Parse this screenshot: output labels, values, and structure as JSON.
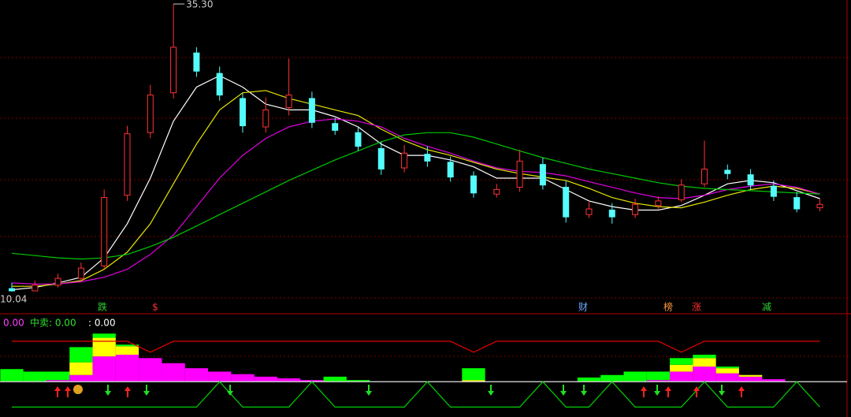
{
  "chart_data": [
    {
      "type": "candlestick",
      "categories": [
        null,
        null,
        null,
        null,
        null,
        null,
        null,
        null,
        null,
        null,
        null,
        null,
        null,
        null,
        null,
        null,
        null,
        null,
        null,
        null,
        null,
        null,
        null,
        null,
        null,
        null,
        null,
        null,
        null,
        null,
        null,
        null,
        null,
        null,
        null,
        null
      ],
      "open": [
        10.3,
        10.1,
        10.6,
        11.2,
        12.3,
        18.5,
        24,
        27.5,
        31,
        29.2,
        27,
        24.5,
        26.2,
        27,
        24.8,
        24,
        22.6,
        20.9,
        22.1,
        21.4,
        20.2,
        18.6,
        19.2,
        21.2,
        19.2,
        16.8,
        17.2,
        16.8,
        17.6,
        18.1,
        19.5,
        20.7,
        20.3,
        19.3,
        18.3,
        17.4
      ],
      "high": [
        10.8,
        11.0,
        11.6,
        12.6,
        19.0,
        24.6,
        28.2,
        35.3,
        31.5,
        29.8,
        27.5,
        27.1,
        30.5,
        27.6,
        25.3,
        24.5,
        23.2,
        22.9,
        22.8,
        21.9,
        20.6,
        19.5,
        22.5,
        21.8,
        19.8,
        17.9,
        17.8,
        18.2,
        18.4,
        19.9,
        23.3,
        21.2,
        20.8,
        19.8,
        18.8,
        18.2
      ],
      "low": [
        10.04,
        10.1,
        10.4,
        11.0,
        12.0,
        18.0,
        23.5,
        27.0,
        28.9,
        26.8,
        24.0,
        24.0,
        25.5,
        24.4,
        23.8,
        22.4,
        20.3,
        20.5,
        21.0,
        19.7,
        18.3,
        18.3,
        18.8,
        19.0,
        16.1,
        16.5,
        16.0,
        16.5,
        17.3,
        17.9,
        19.2,
        19.9,
        19.0,
        18.0,
        17.0,
        17.1
      ],
      "close": [
        10.1,
        10.6,
        11.2,
        12.1,
        18.3,
        23.9,
        27.3,
        31.5,
        29.4,
        27.3,
        24.6,
        26,
        27.3,
        24.9,
        24.2,
        22.8,
        20.8,
        22.2,
        21.5,
        20.1,
        18.7,
        19,
        21.5,
        19.4,
        16.6,
        17.3,
        16.6,
        17.7,
        18,
        19.4,
        20.8,
        20.4,
        19.4,
        18.4,
        17.3,
        17.7
      ],
      "up_color": "#ff3232",
      "down_color": "#54fcfc",
      "series": [
        {
          "color": "#ffffff",
          "values": [
            10.2,
            10.4,
            10.8,
            11.3,
            13,
            16,
            20,
            25,
            28,
            29,
            28,
            26.5,
            26,
            26,
            25.4,
            24.5,
            23,
            22,
            22,
            21.6,
            21,
            20,
            20,
            20,
            19,
            18,
            17.5,
            17.2,
            17.2,
            17.6,
            18.5,
            19.5,
            19.8,
            19.6,
            18.9,
            18.2
          ]
        },
        {
          "color": "#e6e600",
          "values": [
            10.5,
            10.5,
            10.7,
            11,
            12,
            13.5,
            16,
            19.5,
            23,
            26,
            27.5,
            27.7,
            27,
            26.5,
            26,
            25.5,
            24.3,
            23.3,
            22.5,
            22,
            21.4,
            20.8,
            20.4,
            20.1,
            19.8,
            19.1,
            18.3,
            17.8,
            17.5,
            17.4,
            17.9,
            18.5,
            19,
            19.3,
            19.1,
            18.6
          ]
        },
        {
          "color": "#e100e1",
          "values": [
            10.8,
            10.7,
            10.7,
            10.9,
            11.3,
            12,
            13.3,
            15,
            17.5,
            20,
            22,
            23.5,
            24.5,
            25,
            25.2,
            25,
            24.5,
            23.5,
            22.8,
            22.2,
            21.5,
            20.9,
            20.6,
            20.5,
            20.2,
            19.7,
            19.2,
            18.7,
            18.3,
            18.2,
            18.5,
            19,
            19.3,
            19.5,
            19.2,
            18.6
          ]
        },
        {
          "color": "#00c800",
          "values": [
            13.4,
            13.2,
            13,
            12.9,
            13,
            13.3,
            14,
            14.8,
            15.8,
            16.8,
            17.8,
            18.8,
            19.8,
            20.7,
            21.6,
            22.4,
            23.2,
            23.8,
            24,
            24,
            23.6,
            23,
            22.4,
            21.8,
            21.3,
            20.8,
            20.4,
            20,
            19.6,
            19.3,
            19.1,
            19,
            18.9,
            18.8,
            18.7,
            18.6
          ]
        }
      ],
      "ylim": [
        8.3,
        35.65
      ],
      "max_label": "35.30",
      "min_label": "10.04",
      "markers": [
        {
          "text": "跌",
          "color": "#30d030"
        },
        {
          "text": "$",
          "color": "#ff3030"
        },
        {
          "text": "财",
          "color": "#6fa8ff"
        },
        {
          "text": "榜",
          "color": "#ff9640"
        },
        {
          "text": "涨",
          "color": "#ff3030"
        },
        {
          "text": "减",
          "color": "#30d030"
        }
      ]
    },
    {
      "type": "bar",
      "stacked": true,
      "labels": [
        {
          "text": "0.00",
          "color": "#ff40ff"
        },
        {
          "text": "中卖: 0.00",
          "color": "#30e030"
        },
        {
          "text": ": 0.00",
          "color": "#ffffff"
        }
      ],
      "categories": [
        null,
        null,
        null,
        null,
        null,
        null,
        null,
        null,
        null,
        null,
        null,
        null,
        null,
        null,
        null,
        null,
        null,
        null,
        null,
        null,
        null,
        null,
        null,
        null,
        null,
        null,
        null,
        null,
        null,
        null,
        null,
        null,
        null,
        null,
        null,
        null
      ],
      "series": [
        {
          "color": "#ff00ff",
          "values": [
            0,
            0,
            2,
            8,
            30,
            32,
            28,
            22,
            16,
            12,
            9,
            6,
            4,
            2,
            0,
            0,
            0,
            0,
            0,
            0,
            0,
            0,
            0,
            0,
            0,
            0,
            0,
            0,
            2,
            12,
            18,
            10,
            6,
            3,
            0,
            0
          ]
        },
        {
          "color": "#ffff00",
          "values": [
            0,
            0,
            0,
            15,
            22,
            10,
            0,
            0,
            0,
            0,
            0,
            0,
            0,
            0,
            0,
            0,
            0,
            0,
            0,
            0,
            2,
            0,
            0,
            0,
            0,
            0,
            0,
            0,
            0,
            8,
            10,
            6,
            2,
            0,
            0,
            0
          ]
        },
        {
          "color": "#00ff00",
          "values": [
            15,
            12,
            10,
            18,
            5,
            2,
            0,
            0,
            0,
            0,
            0,
            0,
            0,
            0,
            6,
            2,
            0,
            0,
            0,
            0,
            14,
            0,
            0,
            0,
            0,
            5,
            8,
            12,
            10,
            8,
            4,
            2,
            0,
            0,
            0,
            0
          ]
        }
      ],
      "lines": [
        {
          "color": "#e00000",
          "values": [
            48,
            48,
            48,
            48,
            48,
            48,
            35,
            48,
            48,
            48,
            48,
            48,
            48,
            48,
            48,
            48,
            48,
            48,
            48,
            48,
            35,
            48,
            48,
            48,
            48,
            48,
            48,
            48,
            48,
            35,
            48,
            48,
            48,
            48,
            48,
            48
          ]
        },
        {
          "color": "#00d000",
          "values": [
            -30,
            -30,
            -30,
            -30,
            -30,
            -30,
            -30,
            -30,
            -30,
            0,
            -30,
            -30,
            -30,
            0,
            -30,
            -30,
            -30,
            -30,
            0,
            -30,
            -30,
            -30,
            -30,
            0,
            -30,
            -30,
            0,
            -30,
            -30,
            -30,
            0,
            -30,
            -30,
            -30,
            0,
            -30
          ]
        }
      ],
      "zero_color": "#c0c0c0",
      "ylim": [
        -38,
        60
      ]
    }
  ]
}
